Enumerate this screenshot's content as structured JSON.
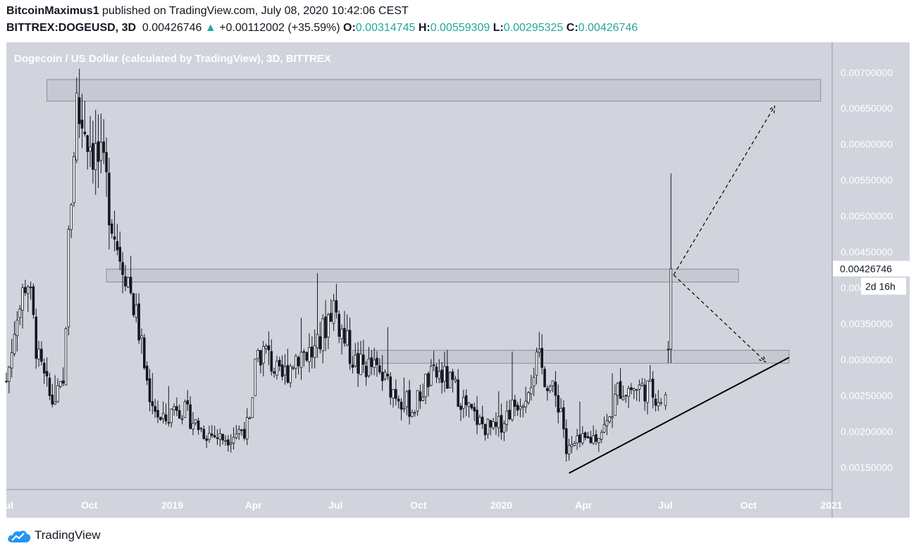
{
  "header": {
    "author": "BitcoinMaximus1",
    "published_text": "published on TradingView.com, July 08, 2020 10:42:06 CEST",
    "symbol": "BITTREX:DOGEUSD, 3D",
    "last_price": "0.00426746",
    "change_arrow": "▲",
    "change": "+0.00112002 (+35.59%)",
    "open_label": "O:",
    "open": "0.00314745",
    "high_label": "H:",
    "high": "0.00559309",
    "low_label": "L:",
    "low": "0.00295325",
    "close_label": "C:",
    "close": "0.00426746"
  },
  "footer": {
    "brand": "TradingView",
    "logo_icon": "tradingview-cloud-icon"
  },
  "colors": {
    "plot_bg": "#d1d4dc",
    "candle": "#131722",
    "zone_fill": "#c3c6cf",
    "zone_stroke": "#8a8e99",
    "label_text": "#ffffff",
    "up": "#26a69a"
  },
  "chart_data": {
    "type": "candlestick",
    "title": "Dogecoin / US Dollar (calculated by TradingView), 3D, BITTREX",
    "ylim": [
      0.0012,
      0.0074
    ],
    "y_ticks": [
      "0.00150000",
      "0.00200000",
      "0.00250000",
      "0.00300000",
      "0.00350000",
      "0.00400000",
      "0.00450000",
      "0.00500000",
      "0.00550000",
      "0.00600000",
      "0.00650000",
      "0.00700000"
    ],
    "y_tick_values": [
      0.0015,
      0.002,
      0.0025,
      0.003,
      0.0035,
      0.004,
      0.0045,
      0.005,
      0.0055,
      0.006,
      0.0065,
      0.007
    ],
    "x_ticks": [
      "Jul",
      "Oct",
      "2019",
      "Apr",
      "Jul",
      "Oct",
      "2020",
      "Apr",
      "Jul",
      "Oct",
      "2021"
    ],
    "x_tick_dates": [
      "2018-07-01",
      "2018-10-01",
      "2019-01-01",
      "2019-04-01",
      "2019-07-01",
      "2019-10-01",
      "2020-01-01",
      "2020-04-01",
      "2020-07-01",
      "2020-10-01",
      "2021-01-01"
    ],
    "xlim": [
      "2018-07-01",
      "2021-01-01"
    ],
    "price_label": "0.00426746",
    "countdown_label": "2d 16h",
    "anchors": [
      [
        "2018-07-01",
        0.0027,
        0.0026
      ],
      [
        "2018-07-12",
        0.0035,
        0.0028
      ],
      [
        "2018-07-24",
        0.0042,
        0.0032
      ],
      [
        "2018-08-05",
        0.003,
        0.003
      ],
      [
        "2018-08-20",
        0.0024,
        0.0023
      ],
      [
        "2018-09-02",
        0.0026,
        0.0025
      ],
      [
        "2018-09-08",
        0.0046,
        0.0028
      ],
      [
        "2018-09-13",
        0.0058,
        0.005
      ],
      [
        "2018-09-17",
        0.0066,
        0.0062
      ],
      [
        "2018-09-22",
        0.0062,
        0.0064
      ],
      [
        "2018-10-01",
        0.006,
        0.0061
      ],
      [
        "2018-10-10",
        0.0056,
        0.0058
      ],
      [
        "2018-10-20",
        0.005,
        0.0054
      ],
      [
        "2018-11-01",
        0.0043,
        0.0046
      ],
      [
        "2018-11-12",
        0.004,
        0.0042
      ],
      [
        "2018-11-25",
        0.0031,
        0.0034
      ],
      [
        "2018-12-05",
        0.0024,
        0.0026
      ],
      [
        "2018-12-20",
        0.002,
        0.0021
      ],
      [
        "2019-01-05",
        0.0024,
        0.0023
      ],
      [
        "2019-01-20",
        0.0022,
        0.0022
      ],
      [
        "2019-02-05",
        0.0019,
        0.002
      ],
      [
        "2019-02-25",
        0.0019,
        0.0019
      ],
      [
        "2019-03-15",
        0.002,
        0.002
      ],
      [
        "2019-03-30",
        0.002,
        0.0021
      ],
      [
        "2019-04-03",
        0.0031,
        0.0031
      ],
      [
        "2019-04-15",
        0.003,
        0.0031
      ],
      [
        "2019-05-01",
        0.0027,
        0.0027
      ],
      [
        "2019-05-20",
        0.0031,
        0.003
      ],
      [
        "2019-06-10",
        0.0031,
        0.0031
      ],
      [
        "2019-06-28",
        0.0036,
        0.0038
      ],
      [
        "2019-07-10",
        0.0033,
        0.0033
      ],
      [
        "2019-07-25",
        0.0029,
        0.0029
      ],
      [
        "2019-08-10",
        0.0029,
        0.0029
      ],
      [
        "2019-08-25",
        0.0026,
        0.0027
      ],
      [
        "2019-09-10",
        0.0025,
        0.0025
      ],
      [
        "2019-09-25",
        0.0023,
        0.0023
      ],
      [
        "2019-10-10",
        0.0027,
        0.0026
      ],
      [
        "2019-10-25",
        0.0028,
        0.0027
      ],
      [
        "2019-11-10",
        0.0026,
        0.0025
      ],
      [
        "2019-11-25",
        0.0023,
        0.0023
      ],
      [
        "2019-12-10",
        0.0021,
        0.0021
      ],
      [
        "2019-12-25",
        0.002,
        0.002
      ],
      [
        "2020-01-10",
        0.0023,
        0.0023
      ],
      [
        "2020-01-25",
        0.0025,
        0.0025
      ],
      [
        "2020-02-10",
        0.0028,
        0.003
      ],
      [
        "2020-02-25",
        0.0026,
        0.0026
      ],
      [
        "2020-03-08",
        0.0023,
        0.0023
      ],
      [
        "2020-03-13",
        0.0016,
        0.0017
      ],
      [
        "2020-03-22",
        0.0017,
        0.0018
      ],
      [
        "2020-04-10",
        0.0019,
        0.0019
      ],
      [
        "2020-04-28",
        0.0021,
        0.0021
      ],
      [
        "2020-05-10",
        0.0026,
        0.0026
      ],
      [
        "2020-05-25",
        0.0026,
        0.0026
      ],
      [
        "2020-06-10",
        0.0026,
        0.0026
      ],
      [
        "2020-06-22",
        0.0025,
        0.0025
      ],
      [
        "2020-06-28",
        0.0023,
        0.0024
      ]
    ],
    "tail_candles": [
      {
        "date": "2020-07-01",
        "o": 0.00236,
        "h": 0.00255,
        "l": 0.0023,
        "c": 0.00251
      },
      {
        "date": "2020-07-04",
        "o": 0.00314745,
        "h": 0.00326,
        "l": 0.00295325,
        "c": 0.00314745
      },
      {
        "date": "2020-07-07",
        "o": 0.00314745,
        "h": 0.00559309,
        "l": 0.00295325,
        "c": 0.00426746
      }
    ],
    "zones": [
      {
        "from": "2018-08-15",
        "to": "2020-12-20",
        "low": 0.0066,
        "high": 0.0069
      },
      {
        "from": "2018-10-20",
        "to": "2020-09-20",
        "low": 0.00408,
        "high": 0.00426
      },
      {
        "from": "2019-07-20",
        "to": "2020-11-15",
        "low": 0.00295,
        "high": 0.00313
      }
    ],
    "trendline": {
      "from": [
        "2020-03-16",
        0.00142
      ],
      "to": [
        "2020-11-15",
        0.00303
      ]
    },
    "projections": [
      {
        "points": [
          [
            "2020-07-10",
            0.00418
          ],
          [
            "2020-10-30",
            0.00653
          ]
        ]
      },
      {
        "points": [
          [
            "2020-07-10",
            0.00418
          ],
          [
            "2020-10-20",
            0.00297
          ]
        ]
      }
    ]
  }
}
